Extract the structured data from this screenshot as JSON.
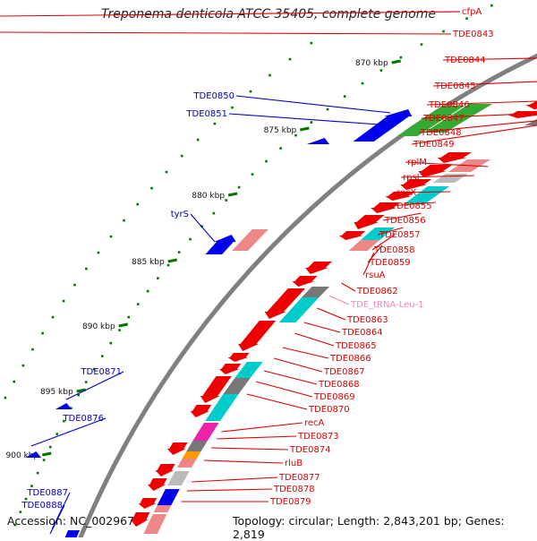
{
  "title": "Treponema denticola ATCC 35405, complete genome",
  "accession": "Accession: NC_002967",
  "summary": "Topology: circular; Length: 2,843,201 bp; Genes: 2,819",
  "colors": {
    "backbone": "#808080",
    "label_plus": "#0000cc",
    "label_minus": "#dd0000",
    "label_trna": "#ee88bb",
    "tick": "#007700",
    "gene_red": "#ee0000",
    "gene_blue": "#0000ee",
    "gene_cyan": "#00cccc",
    "gene_gray": "#777777",
    "gene_green": "#33aa33",
    "gene_pink": "#ee8888",
    "gene_magenta": "#ee22aa",
    "gene_orange": "#ff9900"
  },
  "ticks": [
    "870 kbp",
    "875 kbp",
    "880 kbp",
    "885 kbp",
    "890 kbp",
    "895 kbp",
    "900 kbp"
  ],
  "genes_plus": [
    "TDE0850",
    "TDE0851",
    "tyrS",
    "TDE0871",
    "TDE0876",
    "TDE0887",
    "TDE0888"
  ],
  "genes_minus": [
    "cfpA",
    "TDE0843",
    "TDE0844",
    "TDE0845",
    "TDE0846",
    "TDE0847",
    "TDE0848",
    "TDE0849",
    "rplM",
    "rpsI",
    "recX",
    "TDE0855",
    "TDE0856",
    "TDE0857",
    "TDE0858",
    "TDE0859",
    "rsuA",
    "TDE0862",
    "TDE_tRNA-Leu-1",
    "TDE0863",
    "TDE0864",
    "TDE0865",
    "TDE0866",
    "TDE0867",
    "TDE0868",
    "TDE0869",
    "TDE0870",
    "recA",
    "TDE0873",
    "TDE0874",
    "rluB",
    "TDE0877",
    "TDE0878",
    "TDE0879"
  ]
}
